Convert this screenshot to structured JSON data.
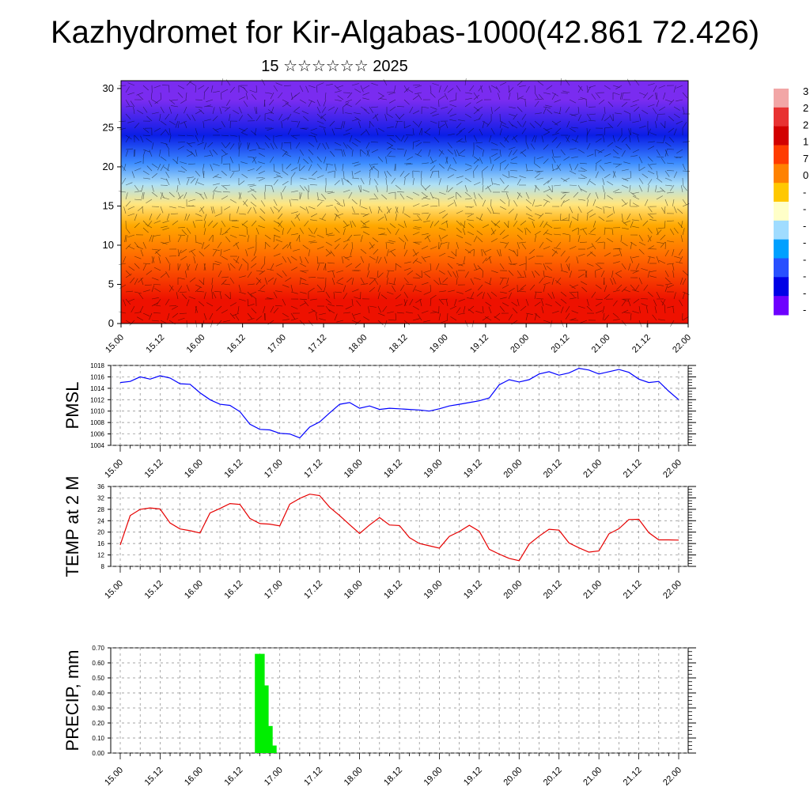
{
  "title": "Kazhydromet for Kir-Algabas-1000(42.861 72.426)",
  "subtitle": "15 ☆☆☆☆☆☆ 2025",
  "colors": {
    "pmsl_line": "#0000ff",
    "temp_line": "#e60000",
    "precip_bar": "#00ee00",
    "grid": "#888888"
  },
  "x_tick_labels": [
    "15.00",
    "15.12",
    "16.00",
    "16.12",
    "17.00",
    "17.12",
    "18.00",
    "18.12",
    "19.00",
    "19.12",
    "20.00",
    "20.12",
    "21.00",
    "21.12",
    "22.00"
  ],
  "colorbar": {
    "labels": [
      "3",
      "2",
      "2",
      "1",
      "7",
      "0",
      "-",
      "-",
      "-",
      "-",
      "-",
      "-",
      "-",
      "-"
    ],
    "colors": [
      "#f2a6a6",
      "#e83232",
      "#d20000",
      "#ff3c00",
      "#ff8200",
      "#ffc800",
      "#ffffc8",
      "#a0dcff",
      "#00a0ff",
      "#2850ff",
      "#0000e6",
      "#6e00ff"
    ]
  },
  "chart_data": [
    {
      "type": "heatmap",
      "name": "vertical cross-section",
      "title": "",
      "ylim": [
        0,
        31
      ],
      "yticks": [
        0,
        5,
        10,
        15,
        20,
        25,
        30
      ],
      "x_range": [
        "15.00",
        "22.00"
      ],
      "bands": [
        {
          "from": 0,
          "to": 6,
          "color": "#ee1100"
        },
        {
          "from": 6,
          "to": 11,
          "color": "#ff6a00"
        },
        {
          "from": 11,
          "to": 14,
          "color": "#ffa800"
        },
        {
          "from": 14,
          "to": 16.5,
          "color": "#ffe680"
        },
        {
          "from": 16.5,
          "to": 19,
          "color": "#aee0f5"
        },
        {
          "from": 19,
          "to": 22,
          "color": "#3c8cff"
        },
        {
          "from": 22,
          "to": 26,
          "color": "#0a1ee6"
        },
        {
          "from": 26,
          "to": 31,
          "color": "#7a2cf0"
        }
      ]
    },
    {
      "type": "line",
      "ylabel": "PMSL",
      "ylim": [
        1004,
        1018
      ],
      "yticks": [
        1004,
        1006,
        1008,
        1010,
        1012,
        1014,
        1016,
        1018
      ],
      "x_range": [
        0,
        84
      ],
      "series": [
        {
          "x": [
            0,
            3,
            6,
            9,
            12,
            15,
            18,
            21,
            24,
            27,
            30,
            33,
            36,
            39,
            42,
            45,
            48,
            51,
            54,
            57,
            60,
            63,
            66,
            69,
            72,
            75,
            78,
            81,
            84
          ],
          "values": [
            1015,
            1015.2,
            1016,
            1015.6,
            1016.2,
            1015.8,
            1014.8,
            1014.7,
            1013.2,
            1012,
            1011.2,
            1011,
            1009.9,
            1007.7,
            1006.8,
            1006.7,
            1006.1,
            1006,
            1005.3,
            1007.2,
            1008.1,
            1009.7,
            1011.2,
            1011.5,
            1010.5,
            1010.9,
            1010.3,
            1010.5,
            1010.4
          ]
        }
      ]
    },
    {
      "type": "line",
      "ylabel": "TEMP at 2 M",
      "ylim": [
        8,
        36
      ],
      "yticks": [
        8,
        12,
        16,
        20,
        24,
        28,
        32,
        36
      ],
      "series": [
        {
          "x": [
            0,
            3,
            6,
            9,
            12,
            15,
            18,
            21,
            24,
            27,
            30,
            33,
            36,
            39,
            42,
            45,
            48,
            51,
            54,
            57,
            60,
            63,
            66,
            69,
            72,
            75,
            78,
            81,
            84
          ],
          "values": [
            15.5,
            25.8,
            28,
            28.5,
            28.1,
            23.2,
            21.1,
            20.5,
            19.7,
            26.7,
            28.3,
            30,
            29.7,
            24.8,
            23,
            22.8,
            22.2,
            29.8,
            31.8,
            33.3,
            32.8,
            28.7,
            25.8,
            22.6,
            19.5,
            22.5,
            25.1,
            22.5,
            22.3
          ]
        }
      ]
    },
    {
      "type": "bar",
      "ylabel": "PRECIP, mm",
      "ylim": [
        0,
        0.7
      ],
      "yticks": [
        "0.00",
        "0.10",
        "0.20",
        "0.30",
        "0.40",
        "0.50",
        "0.60",
        "0.70"
      ],
      "bars": [
        {
          "x": 40.5,
          "value": 0.66
        },
        {
          "x": 41.7,
          "value": 0.45
        },
        {
          "x": 42.9,
          "value": 0.18
        },
        {
          "x": 44.1,
          "value": 0.05
        }
      ]
    }
  ],
  "extra_series": {
    "pmsl_tail": {
      "x": [
        87,
        90,
        93,
        96,
        99,
        102,
        105,
        108,
        111,
        114,
        117,
        120,
        123,
        126,
        129,
        132,
        135,
        138,
        141,
        144,
        147,
        150,
        153,
        156,
        159,
        162,
        165,
        168
      ],
      "values": [
        1010.3,
        1010.2,
        1010,
        1010.4,
        1010.9,
        1011.2,
        1011.5,
        1011.8,
        1012.3,
        1014.6,
        1015.5,
        1015.1,
        1015.5,
        1016.5,
        1016.9,
        1016.3,
        1016.7,
        1017.5,
        1017.2,
        1016.5,
        1016.9,
        1017.3,
        1016.8,
        1015.6,
        1015,
        1015.2,
        1013.5,
        1012
      ]
    },
    "temp_tail": {
      "x": [
        87,
        90,
        93,
        96,
        99,
        102,
        105,
        108,
        111,
        114,
        117,
        120,
        123,
        126,
        129,
        132,
        135,
        138,
        141,
        144,
        147,
        150,
        153,
        156,
        159,
        162,
        165,
        168
      ],
      "values": [
        18.1,
        16,
        15.2,
        14.4,
        18.5,
        20.2,
        22.4,
        20.3,
        14,
        12.3,
        10.8,
        10,
        15.8,
        18.6,
        21,
        20.7,
        16.2,
        14.5,
        13,
        13.4,
        19.4,
        21.2,
        24.4,
        24.5,
        19.8,
        17.3,
        17.3,
        17.2
      ]
    }
  },
  "axis_labels": {
    "pmsl": "PMSL",
    "temp": "TEMP at 2 M",
    "precip": "PRECIP, mm"
  }
}
